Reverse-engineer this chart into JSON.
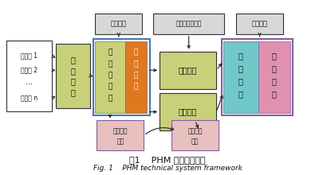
{
  "bg_color": "#ffffff",
  "title_cn": "图1    PHM 技术系统框架",
  "title_en": "Fig. 1    PHM technical system framework",
  "sensors_lines": [
    "传感器 1",
    "传感器 2",
    "···",
    "传感器 n"
  ],
  "colors": {
    "green_light": "#c8d07a",
    "orange": "#e07820",
    "teal": "#70c8c8",
    "pink": "#e090b0",
    "pink_box": "#e8c0c0",
    "gray_box": "#d8d8d8",
    "blue_border": "#4878b0",
    "purple_border": "#8060a0",
    "dark": "#333333",
    "white": "#ffffff"
  },
  "figsize": [
    4.2,
    2.2
  ],
  "dpi": 100
}
